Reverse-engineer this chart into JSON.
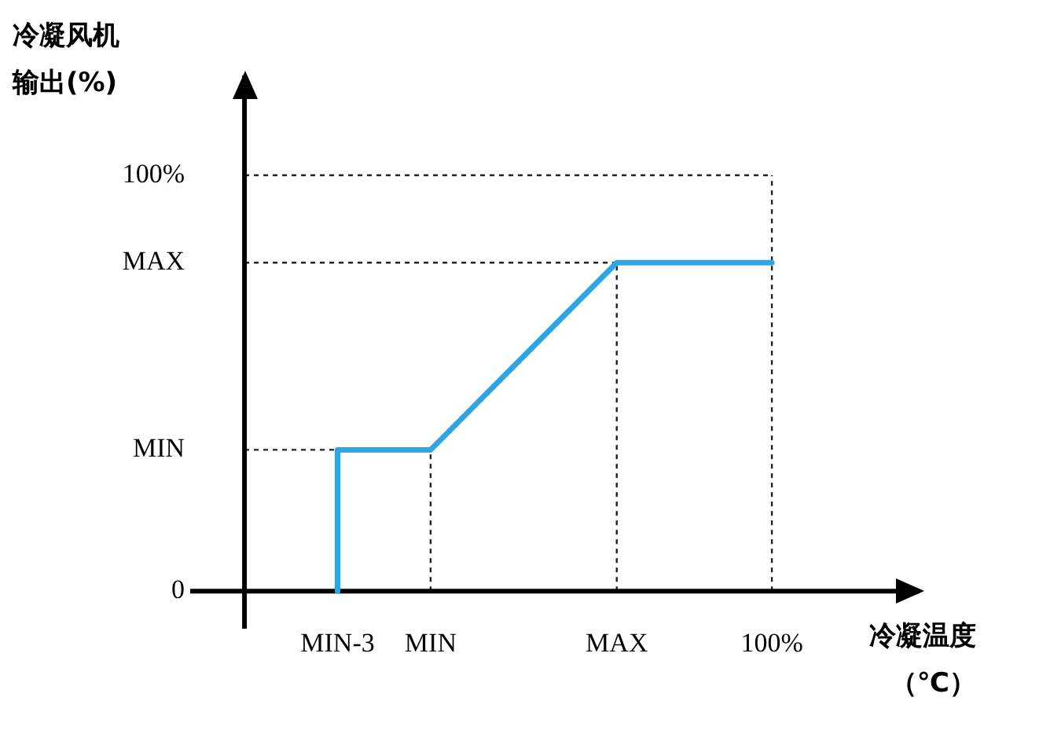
{
  "chart_data": {
    "type": "line",
    "xlabel": "冷凝温度（℃）",
    "ylabel": "冷凝风机输出(%)",
    "categories": [
      null,
      null,
      null,
      "MIN-3",
      null,
      null,
      "MIN",
      null,
      null,
      null,
      null,
      null,
      "MAX",
      null,
      null,
      null,
      null,
      "100%"
    ],
    "series": [
      {
        "color": "#2ea6e6",
        "x": [
          "MIN-3",
          "MIN-3",
          "MIN",
          "MAX",
          "100%"
        ],
        "values": [
          0,
          34,
          34,
          79,
          79
        ]
      }
    ],
    "ylim": [
      -9,
      124
    ],
    "yticks": [
      0,
      {
        "value": 34,
        "label": "MIN"
      },
      {
        "value": 79,
        "label": "MAX"
      },
      {
        "value": 100,
        "label": "100%"
      }
    ],
    "ref_lines": [
      {
        "axis": "y",
        "value": 34,
        "line_style": "dashed"
      },
      {
        "axis": "x",
        "value": "MIN",
        "line_style": "dashed"
      }
    ],
    "grid": true,
    "legend": false,
    "marker": "none",
    "line_style": "solid"
  }
}
